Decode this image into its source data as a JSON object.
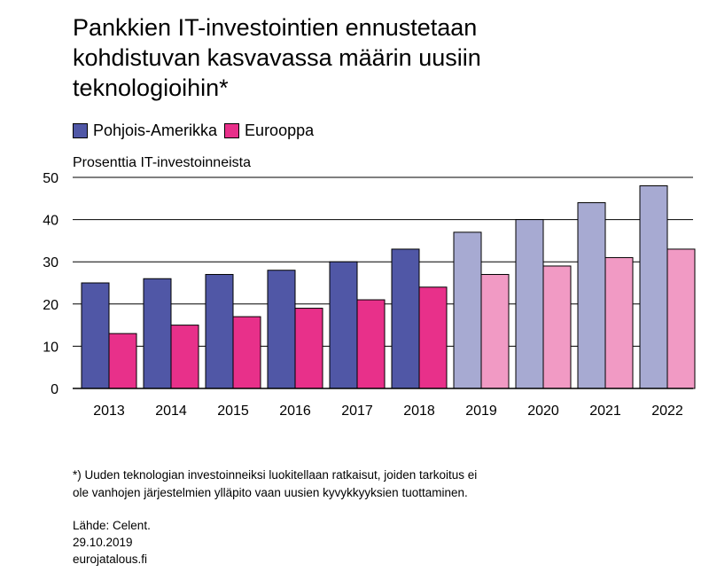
{
  "title_lines": [
    "Pankkien IT-investointien ennustetaan",
    "kohdistuvan kasvavassa määrin uusiin",
    "teknologioihin*"
  ],
  "legend": [
    {
      "label": "Pohjois-Amerikka",
      "color": "#5057a6"
    },
    {
      "label": "Eurooppa",
      "color": "#e8308a"
    }
  ],
  "chart_data": {
    "type": "bar",
    "title": "Pankkien IT-investointien ennustetaan kohdistuvan kasvavassa määrin uusiin teknologioihin*",
    "ylabel": "Prosenttia IT-investoinneista",
    "xlabel": "",
    "categories": [
      "2013",
      "2014",
      "2015",
      "2016",
      "2017",
      "2018",
      "2019",
      "2020",
      "2021",
      "2022"
    ],
    "series": [
      {
        "name": "Pohjois-Amerikka",
        "values": [
          25,
          26,
          27,
          28,
          30,
          33,
          37,
          40,
          44,
          48
        ],
        "color": "#5057a6",
        "forecast_color": "#a7aad2"
      },
      {
        "name": "Eurooppa",
        "values": [
          13,
          15,
          17,
          19,
          21,
          24,
          27,
          29,
          31,
          33
        ],
        "color": "#e8308a",
        "forecast_color": "#f19ac4"
      }
    ],
    "forecast_from": "2019",
    "ylim": [
      0,
      50
    ],
    "yticks": [
      "0",
      "10",
      "20",
      "30",
      "40",
      "50"
    ],
    "grid": true,
    "legend_position": "top-left"
  },
  "footnote_lines": [
    "*) Uuden teknologian investoinneiksi luokitellaan ratkaisut, joiden tarkoitus ei",
    "ole vanhojen järjestelmien ylläpito vaan uusien kyvykkyyksien tuottaminen."
  ],
  "source_lines": [
    "Lähde: Celent.",
    "29.10.2019",
    "eurojatalous.fi"
  ]
}
